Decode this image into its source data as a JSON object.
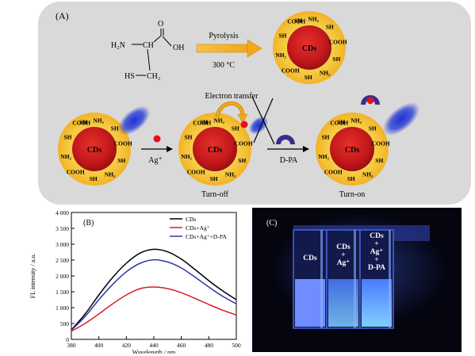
{
  "panel_a": {
    "label": "(A)",
    "molecule": {
      "h2n": "H₂N",
      "o": "O",
      "oh": "OH",
      "hs": "HS",
      "ch": "CH",
      "ch2": "CH₂"
    },
    "pyrolysis_label": "Pyrolysis",
    "temperature_label": "300 °C",
    "cd_label": "CDs",
    "groups": [
      "SH",
      "NH₂",
      "COOH"
    ],
    "electron_transfer_label": "Electron transfer",
    "ag_label": "Ag⁺",
    "dpa_label": "D-PA",
    "turn_off_label": "Turn-off",
    "turn_on_label": "Turn-on",
    "colors": {
      "panel_bg": "#d9d9d9",
      "core": "#c2181b",
      "shell": "#f5c63c",
      "arrow": "#f2a818",
      "ag": "#e8111b",
      "dpa": "#3c2a8c",
      "glow": "#2a3fd4"
    }
  },
  "panel_b": {
    "label": "(B)",
    "colors": {
      "series": [
        "#000000",
        "#d81e26",
        "#2b35a8"
      ]
    }
  },
  "panel_c": {
    "label": "(C)",
    "cuvettes": [
      {
        "lines": [
          "CDs"
        ]
      },
      {
        "lines": [
          "CDs",
          "+",
          "Ag⁺"
        ]
      },
      {
        "lines": [
          "CDs",
          "+",
          "Ag⁺",
          "+",
          "D-PA"
        ]
      }
    ],
    "colors": {
      "background": "#050510",
      "glow": "#3d6bff",
      "liquid": "#7fd0ff"
    }
  },
  "chart_data": {
    "type": "line",
    "xlabel": "Wavelength / nm",
    "ylabel": "FL intensity / a.u.",
    "xlim": [
      380,
      500
    ],
    "ylim": [
      0,
      4000
    ],
    "xticks": [
      380,
      400,
      420,
      440,
      460,
      480,
      500
    ],
    "yticks": [
      0,
      500,
      1000,
      1500,
      2000,
      2500,
      3000,
      3500,
      4000
    ],
    "yticklabels": [
      "0",
      "500",
      "1 000",
      "1 500",
      "2 000",
      "2 500",
      "3 000",
      "3 500",
      "4 000"
    ],
    "legend_position": "top-right",
    "x": [
      380,
      390,
      400,
      410,
      420,
      430,
      440,
      450,
      460,
      470,
      480,
      490,
      500
    ],
    "series": [
      {
        "name": "CDs",
        "values": [
          300,
          800,
          1400,
          1950,
          2400,
          2720,
          2840,
          2760,
          2530,
          2200,
          1850,
          1530,
          1250
        ]
      },
      {
        "name": "CDs+Ag⁺",
        "values": [
          260,
          500,
          800,
          1120,
          1400,
          1600,
          1650,
          1600,
          1470,
          1290,
          1100,
          920,
          770
        ]
      },
      {
        "name": "CDs+Ag⁺+D-PA",
        "values": [
          290,
          720,
          1250,
          1730,
          2130,
          2400,
          2510,
          2440,
          2250,
          1960,
          1650,
          1360,
          1120
        ]
      }
    ]
  }
}
